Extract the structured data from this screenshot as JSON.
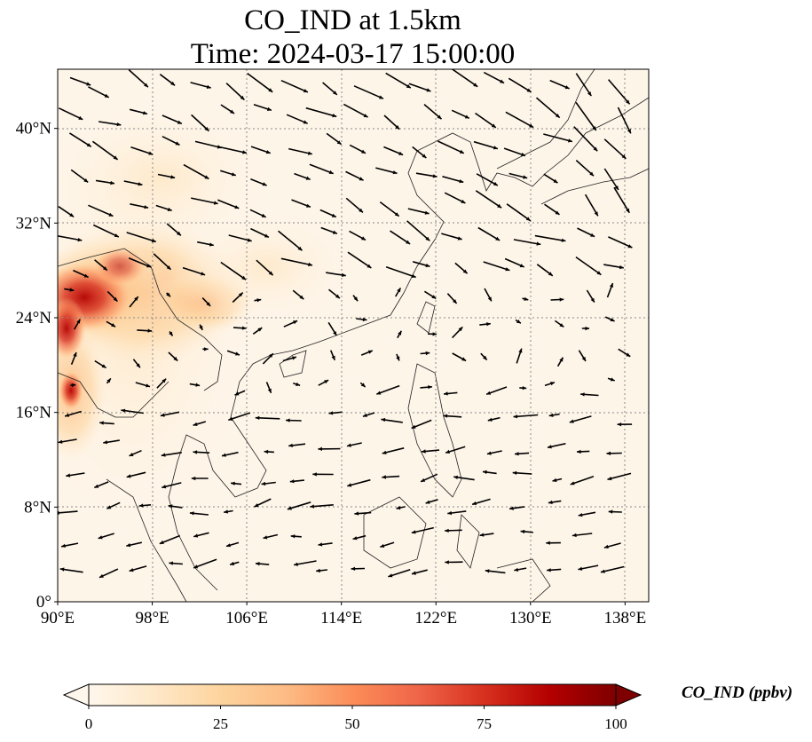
{
  "title": {
    "line1": "CO_IND at 1.5km",
    "line2": "Time: 2024-03-17 15:00:00"
  },
  "map": {
    "projection": "PlateCarree",
    "lon_range": [
      90,
      140
    ],
    "lat_range": [
      0,
      45
    ],
    "gridlines": "dotted gray",
    "lon_ticks": [
      {
        "value": 90,
        "label": "90°E"
      },
      {
        "value": 98,
        "label": "98°E"
      },
      {
        "value": 106,
        "label": "106°E"
      },
      {
        "value": 114,
        "label": "114°E"
      },
      {
        "value": 122,
        "label": "122°E"
      },
      {
        "value": 130,
        "label": "130°E"
      },
      {
        "value": 138,
        "label": "138°E"
      }
    ],
    "lat_ticks": [
      {
        "value": 0,
        "label": "0°"
      },
      {
        "value": 8,
        "label": "8°N"
      },
      {
        "value": 16,
        "label": "16°N"
      },
      {
        "value": 24,
        "label": "24°N"
      },
      {
        "value": 32,
        "label": "32°N"
      },
      {
        "value": 40,
        "label": "40°N"
      }
    ],
    "field": "CO_IND concentration (ppbv), high over northern Myanmar / Yunnan, low over ocean",
    "wind_vectors": "black quiver arrows"
  },
  "colorbar": {
    "label": "CO_IND (ppbv)",
    "colormap": "OrRd",
    "range": [
      0,
      100
    ],
    "extend": "both",
    "ticks": [
      {
        "value": 0,
        "label": "0"
      },
      {
        "value": 25,
        "label": "25"
      },
      {
        "value": 50,
        "label": "50"
      },
      {
        "value": 75,
        "label": "75"
      },
      {
        "value": 100,
        "label": "100"
      }
    ],
    "colors": [
      "#fff7ec",
      "#fee8c8",
      "#fdd49e",
      "#fdbb84",
      "#fc8d59",
      "#ef6548",
      "#d7301f",
      "#b30000",
      "#7f0000"
    ]
  }
}
